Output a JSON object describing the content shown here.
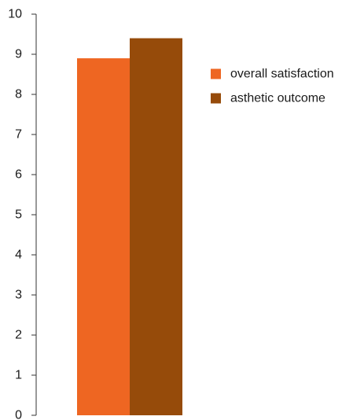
{
  "chart_data": {
    "type": "bar",
    "categories": [
      ""
    ],
    "series": [
      {
        "name": "overall satisfaction",
        "values": [
          8.9
        ],
        "color": "#EE6622"
      },
      {
        "name": "asthetic outcome",
        "values": [
          9.4
        ],
        "color": "#964B0A"
      }
    ],
    "title": "",
    "xlabel": "",
    "ylabel": "",
    "ylim": [
      0,
      10
    ],
    "yticks": [
      0,
      1,
      2,
      3,
      4,
      5,
      6,
      7,
      8,
      9,
      10
    ],
    "grid": false,
    "legend_position": "right"
  }
}
